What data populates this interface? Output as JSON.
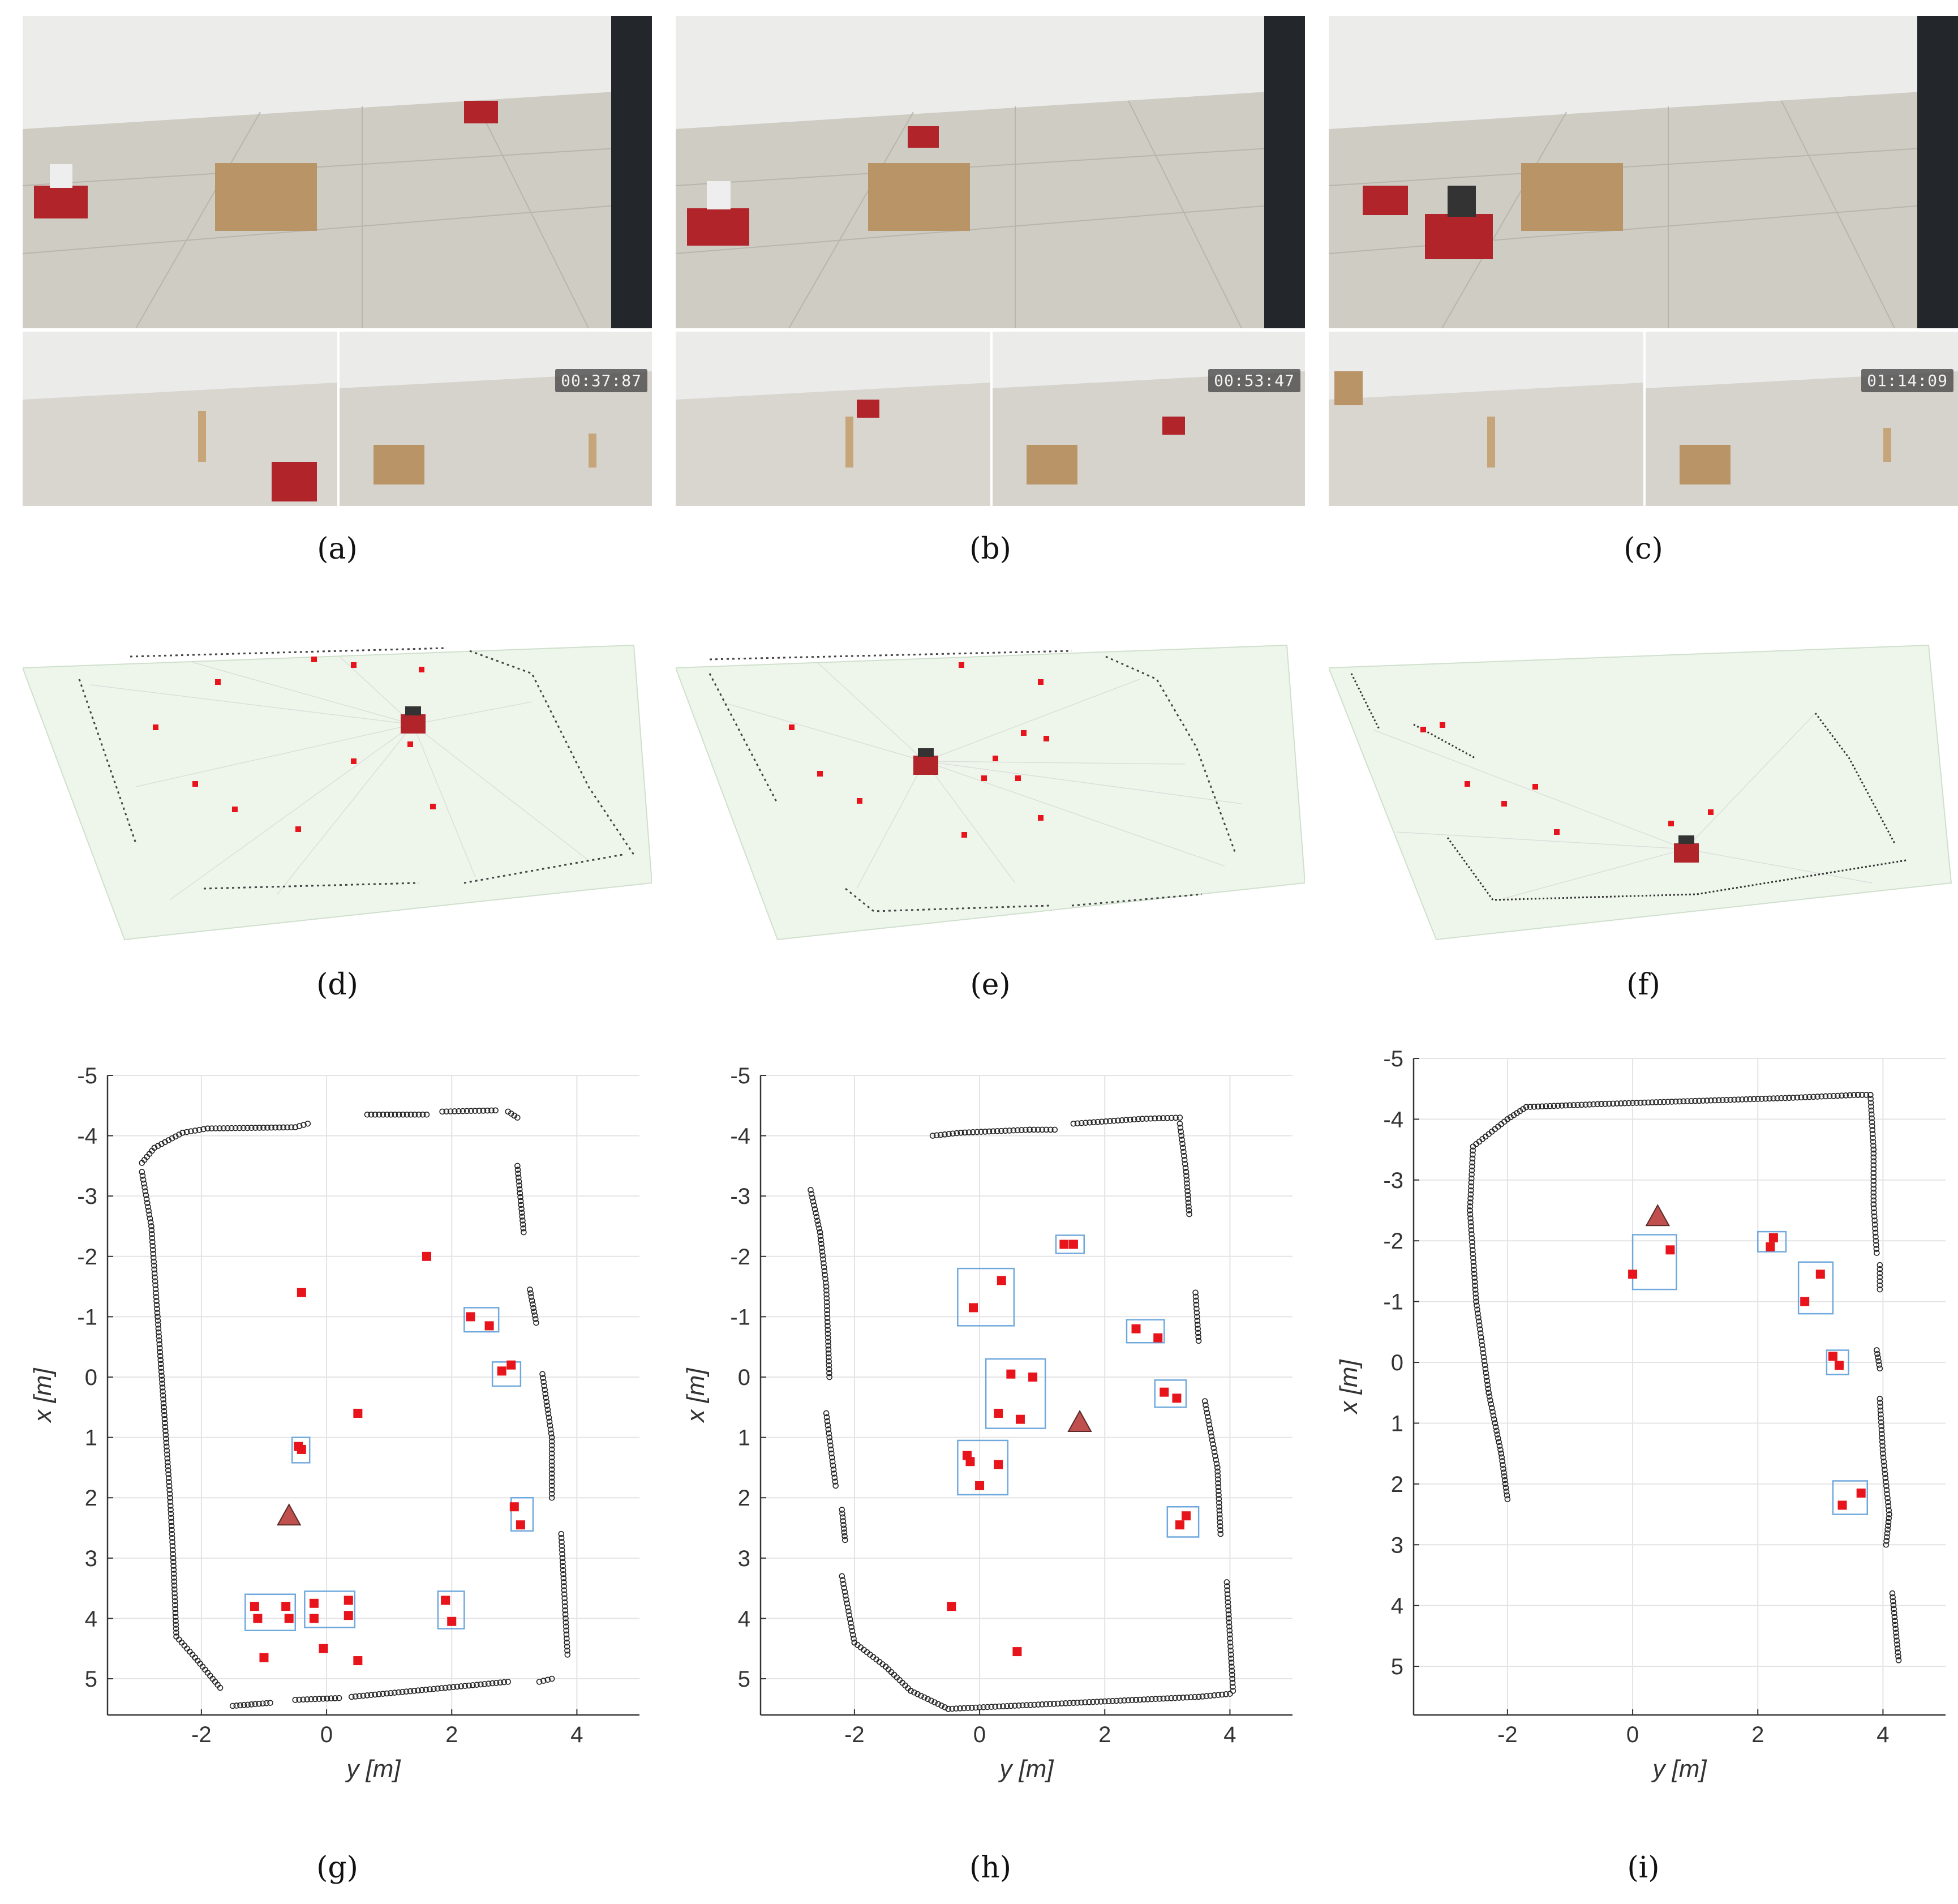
{
  "figure": {
    "captions": [
      "(a)",
      "(b)",
      "(c)",
      "(d)",
      "(e)",
      "(f)",
      "(g)",
      "(h)",
      "(i)"
    ],
    "timestamps": [
      "00:37:87",
      "00:53:47",
      "01:14:09"
    ],
    "colors": {
      "landmark": "#e8141c",
      "scan_point": "#222222",
      "cluster_box": "#6fa8dc",
      "robot_marker": "#c0504d",
      "ground_plane": "#eef6ec"
    }
  },
  "chart_data": [
    {
      "type": "scatter",
      "panel": "g",
      "xlabel": "y [m]",
      "ylabel": "x [m]",
      "xlim": [
        -3.5,
        5
      ],
      "ylim": [
        -5,
        5.6
      ],
      "y_inverted": true,
      "xticks": [
        "-2",
        "0",
        "2",
        "4"
      ],
      "yticks": [
        "-5",
        "-4",
        "-3",
        "-2",
        "-1",
        "0",
        "1",
        "2",
        "3",
        "4",
        "5"
      ],
      "grid": true,
      "robot": [
        -0.6,
        2.3
      ],
      "landmarks": [
        [
          -0.4,
          -1.4
        ],
        [
          1.6,
          -2.0
        ],
        [
          2.3,
          -1.0
        ],
        [
          2.6,
          -0.85
        ],
        [
          2.8,
          -0.1
        ],
        [
          2.95,
          -0.2
        ],
        [
          -0.45,
          1.15
        ],
        [
          -0.4,
          1.2
        ],
        [
          0.5,
          0.6
        ],
        [
          3.0,
          2.15
        ],
        [
          3.1,
          2.45
        ],
        [
          -1.15,
          3.8
        ],
        [
          -0.65,
          3.8
        ],
        [
          -1.1,
          4.0
        ],
        [
          -0.6,
          4.0
        ],
        [
          -0.2,
          3.75
        ],
        [
          0.35,
          3.7
        ],
        [
          -0.2,
          4.0
        ],
        [
          0.35,
          3.95
        ],
        [
          1.9,
          3.7
        ],
        [
          2.0,
          4.05
        ],
        [
          -1.0,
          4.65
        ],
        [
          -0.05,
          4.5
        ],
        [
          0.5,
          4.7
        ]
      ],
      "boxes": [
        [
          2.2,
          -1.15,
          0.55,
          0.4
        ],
        [
          2.65,
          -0.25,
          0.45,
          0.4
        ],
        [
          -0.55,
          1.0,
          0.28,
          0.42
        ],
        [
          2.95,
          2.0,
          0.35,
          0.55
        ],
        [
          -1.3,
          3.6,
          0.8,
          0.6
        ],
        [
          -0.35,
          3.55,
          0.8,
          0.6
        ],
        [
          1.78,
          3.55,
          0.42,
          0.62
        ]
      ],
      "walls": [
        [
          [
            -2.95,
            -3.55
          ],
          [
            -2.75,
            -3.8
          ],
          [
            -2.3,
            -4.05
          ],
          [
            -1.9,
            -4.12
          ],
          [
            -0.5,
            -4.14
          ],
          [
            -0.3,
            -4.2
          ]
        ],
        [
          [
            0.65,
            -4.35
          ],
          [
            1.6,
            -4.35
          ]
        ],
        [
          [
            1.85,
            -4.4
          ],
          [
            2.7,
            -4.42
          ]
        ],
        [
          [
            2.9,
            -4.4
          ],
          [
            3.05,
            -4.3
          ]
        ],
        [
          [
            3.05,
            -3.5
          ],
          [
            3.15,
            -2.4
          ]
        ],
        [
          [
            3.25,
            -1.45
          ],
          [
            3.35,
            -0.9
          ]
        ],
        [
          [
            3.45,
            -0.05
          ],
          [
            3.6,
            1.0
          ],
          [
            3.6,
            2.0
          ]
        ],
        [
          [
            3.75,
            2.6
          ],
          [
            3.85,
            4.6
          ]
        ],
        [
          [
            -2.95,
            -3.4
          ],
          [
            -2.8,
            -2.5
          ],
          [
            -2.7,
            -1.0
          ],
          [
            -2.6,
            0.5
          ],
          [
            -2.5,
            2.0
          ],
          [
            -2.45,
            3.0
          ],
          [
            -2.4,
            4.3
          ],
          [
            -2.1,
            4.65
          ],
          [
            -1.7,
            5.15
          ]
        ],
        [
          [
            -1.5,
            5.45
          ],
          [
            -0.9,
            5.4
          ]
        ],
        [
          [
            -0.5,
            5.35
          ],
          [
            0.2,
            5.32
          ]
        ],
        [
          [
            0.4,
            5.3
          ],
          [
            2.9,
            5.05
          ]
        ],
        [
          [
            3.4,
            5.05
          ],
          [
            3.6,
            5.0
          ]
        ]
      ]
    },
    {
      "type": "scatter",
      "panel": "h",
      "xlabel": "y [m]",
      "ylabel": "x [m]",
      "xlim": [
        -3.5,
        5
      ],
      "ylim": [
        -5,
        5.6
      ],
      "y_inverted": true,
      "xticks": [
        "-2",
        "0",
        "2",
        "4"
      ],
      "yticks": [
        "-5",
        "-4",
        "-3",
        "-2",
        "-1",
        "0",
        "1",
        "2",
        "3",
        "4",
        "5"
      ],
      "grid": true,
      "robot": [
        1.6,
        0.75
      ],
      "landmarks": [
        [
          1.35,
          -2.2
        ],
        [
          1.5,
          -2.2
        ],
        [
          -0.1,
          -1.15
        ],
        [
          0.35,
          -1.6
        ],
        [
          2.5,
          -0.8
        ],
        [
          2.85,
          -0.65
        ],
        [
          0.5,
          -0.05
        ],
        [
          0.85,
          0.0
        ],
        [
          0.3,
          0.6
        ],
        [
          0.65,
          0.7
        ],
        [
          2.95,
          0.25
        ],
        [
          3.15,
          0.35
        ],
        [
          -0.2,
          1.3
        ],
        [
          -0.15,
          1.4
        ],
        [
          0.3,
          1.45
        ],
        [
          0.0,
          1.8
        ],
        [
          3.2,
          2.45
        ],
        [
          3.3,
          2.3
        ],
        [
          -0.45,
          3.8
        ],
        [
          0.6,
          4.55
        ]
      ],
      "boxes": [
        [
          1.22,
          -2.35,
          0.45,
          0.3
        ],
        [
          -0.35,
          -1.8,
          0.9,
          0.95
        ],
        [
          2.35,
          -0.95,
          0.6,
          0.38
        ],
        [
          2.8,
          0.05,
          0.5,
          0.45
        ],
        [
          0.1,
          -0.3,
          0.95,
          1.15
        ],
        [
          -0.35,
          1.05,
          0.8,
          0.9
        ],
        [
          3.0,
          2.15,
          0.5,
          0.5
        ]
      ],
      "walls": [
        [
          [
            -2.7,
            -3.1
          ],
          [
            -2.55,
            -2.4
          ],
          [
            -2.45,
            -1.5
          ],
          [
            -2.4,
            0.0
          ]
        ],
        [
          [
            -2.45,
            0.6
          ],
          [
            -2.3,
            1.8
          ]
        ],
        [
          [
            -2.2,
            2.2
          ],
          [
            -2.15,
            2.7
          ]
        ],
        [
          [
            -2.2,
            3.3
          ],
          [
            -2.0,
            4.4
          ],
          [
            -1.5,
            4.8
          ],
          [
            -1.1,
            5.2
          ],
          [
            -0.5,
            5.5
          ],
          [
            0.5,
            5.45
          ],
          [
            1.5,
            5.4
          ],
          [
            2.5,
            5.35
          ],
          [
            3.5,
            5.3
          ],
          [
            4.0,
            5.25
          ]
        ],
        [
          [
            -0.75,
            -4.0
          ],
          [
            -0.3,
            -4.05
          ],
          [
            0.8,
            -4.1
          ],
          [
            1.2,
            -4.1
          ]
        ],
        [
          [
            1.5,
            -4.2
          ],
          [
            2.6,
            -4.28
          ],
          [
            3.2,
            -4.3
          ]
        ],
        [
          [
            3.2,
            -4.2
          ],
          [
            3.3,
            -3.4
          ],
          [
            3.35,
            -2.7
          ]
        ],
        [
          [
            3.45,
            -1.4
          ],
          [
            3.5,
            -0.6
          ]
        ],
        [
          [
            3.6,
            0.4
          ],
          [
            3.8,
            1.5
          ],
          [
            3.85,
            2.6
          ]
        ],
        [
          [
            3.95,
            3.4
          ],
          [
            4.05,
            5.2
          ]
        ]
      ]
    },
    {
      "type": "scatter",
      "panel": "i",
      "xlabel": "y [m]",
      "ylabel": "x [m]",
      "xlim": [
        -3.5,
        5
      ],
      "ylim": [
        -5,
        5.8
      ],
      "y_inverted": true,
      "xticks": [
        "-2",
        "0",
        "2",
        "4"
      ],
      "yticks": [
        "-5",
        "-4",
        "-3",
        "-2",
        "-1",
        "0",
        "1",
        "2",
        "3",
        "4",
        "5"
      ],
      "grid": true,
      "robot": [
        0.4,
        -2.4
      ],
      "landmarks": [
        [
          0.0,
          -1.45
        ],
        [
          0.6,
          -1.85
        ],
        [
          2.2,
          -1.9
        ],
        [
          2.25,
          -2.05
        ],
        [
          2.75,
          -1.0
        ],
        [
          3.0,
          -1.45
        ],
        [
          3.2,
          -0.1
        ],
        [
          3.3,
          0.05
        ],
        [
          3.35,
          2.35
        ],
        [
          3.65,
          2.15
        ]
      ],
      "boxes": [
        [
          0.0,
          -2.1,
          0.7,
          0.9
        ],
        [
          2.0,
          -2.15,
          0.45,
          0.33
        ],
        [
          2.65,
          -1.65,
          0.55,
          0.85
        ],
        [
          3.1,
          -0.2,
          0.35,
          0.4
        ],
        [
          3.2,
          1.95,
          0.55,
          0.55
        ]
      ],
      "walls": [
        [
          [
            -2.0,
            2.25
          ],
          [
            -2.1,
            1.5
          ],
          [
            -2.3,
            0.5
          ],
          [
            -2.5,
            -1.0
          ],
          [
            -2.6,
            -2.5
          ],
          [
            -2.55,
            -3.55
          ],
          [
            -2.0,
            -4.0
          ],
          [
            -1.7,
            -4.2
          ],
          [
            -0.5,
            -4.25
          ],
          [
            1.0,
            -4.3
          ],
          [
            2.5,
            -4.35
          ],
          [
            3.6,
            -4.4
          ],
          [
            3.8,
            -4.4
          ],
          [
            3.85,
            -3.5
          ],
          [
            3.85,
            -2.6
          ],
          [
            3.9,
            -1.8
          ]
        ],
        [
          [
            3.95,
            -1.6
          ],
          [
            3.95,
            -1.2
          ]
        ],
        [
          [
            3.9,
            -0.2
          ],
          [
            3.95,
            0.1
          ]
        ],
        [
          [
            3.95,
            0.6
          ],
          [
            4.0,
            1.5
          ],
          [
            4.1,
            2.5
          ],
          [
            4.05,
            3.0
          ]
        ],
        [
          [
            4.15,
            3.8
          ],
          [
            4.25,
            4.9
          ]
        ]
      ]
    }
  ]
}
